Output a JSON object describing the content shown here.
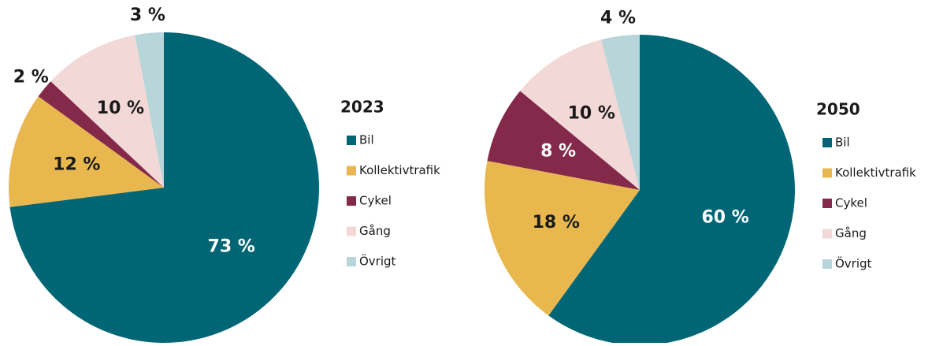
{
  "chart_data": [
    {
      "type": "pie",
      "title": "2023",
      "categories": [
        "Bil",
        "Kollektivtrafik",
        "Cykel",
        "Gång",
        "Övrigt"
      ],
      "values": [
        73,
        12,
        2,
        10,
        3
      ],
      "value_labels": [
        "73 %",
        "12 %",
        "2 %",
        "10 %",
        "3 %"
      ],
      "colors": [
        "#006675",
        "#e8b84f",
        "#84294a",
        "#f2d9d7",
        "#b8d5da"
      ]
    },
    {
      "type": "pie",
      "title": "2050",
      "categories": [
        "Bil",
        "Kollektivtrafik",
        "Cykel",
        "Gång",
        "Övrigt"
      ],
      "values": [
        60,
        18,
        8,
        10,
        4
      ],
      "value_labels": [
        "60 %",
        "18 %",
        "8 %",
        "10 %",
        "4 %"
      ],
      "colors": [
        "#006675",
        "#e8b84f",
        "#84294a",
        "#f2d9d7",
        "#b8d5da"
      ]
    }
  ]
}
